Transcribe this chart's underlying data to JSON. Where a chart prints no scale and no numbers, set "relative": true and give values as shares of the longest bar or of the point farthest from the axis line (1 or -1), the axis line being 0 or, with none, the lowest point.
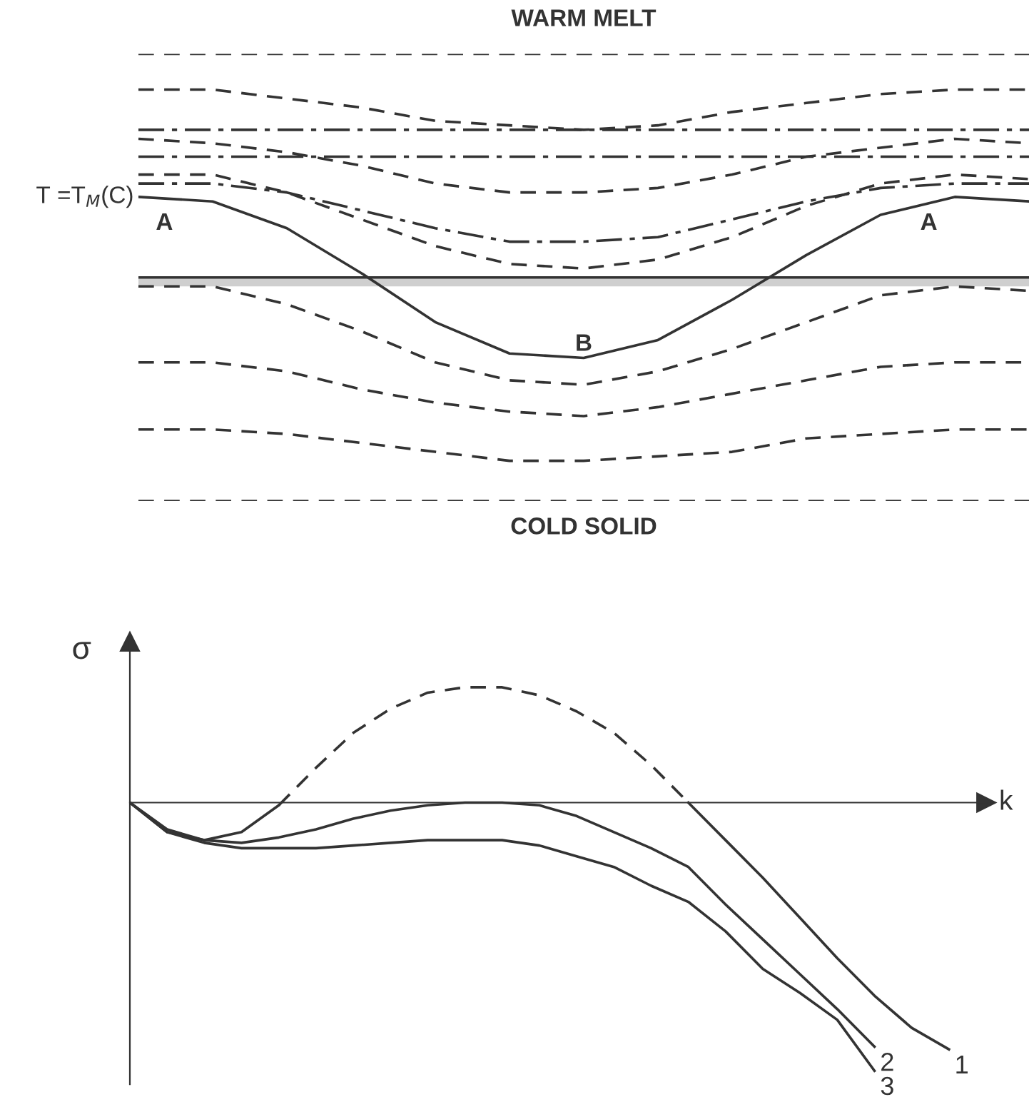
{
  "chart_data": [
    {
      "type": "line",
      "relative": true,
      "title": "WARM MELT",
      "xlabel": "COLD SOLID",
      "ylabel": "T =T$_{M}$(C)",
      "categories": [
        null,
        null,
        null,
        null,
        null,
        null,
        null,
        null,
        null,
        null,
        null,
        null,
        null
      ],
      "series": [
        {
          "color": "#333333",
          "line_style": "dashed",
          "values": [
            1,
            1,
            1,
            1,
            1,
            1,
            1,
            1,
            1,
            1,
            1,
            1,
            1
          ]
        },
        {
          "color": "#333333",
          "line_style": "dashed",
          "values": [
            0.92,
            0.92,
            0.9,
            0.88,
            0.85,
            0.84,
            0.83,
            0.84,
            0.87,
            0.89,
            0.91,
            0.92,
            0.92
          ]
        },
        {
          "color": "#333333",
          "line_style": "dashdot",
          "values": [
            0.83,
            0.83,
            0.83,
            0.83,
            0.83,
            0.83,
            0.83,
            0.83,
            0.83,
            0.83,
            0.83,
            0.83,
            0.83
          ]
        },
        {
          "color": "#333333",
          "line_style": "dashed",
          "values": [
            0.81,
            0.8,
            0.78,
            0.75,
            0.71,
            0.69,
            0.69,
            0.7,
            0.73,
            0.77,
            0.79,
            0.81,
            0.8
          ]
        },
        {
          "color": "#333333",
          "line_style": "dashdot",
          "values": [
            0.77,
            0.77,
            0.77,
            0.77,
            0.77,
            0.77,
            0.77,
            0.77,
            0.77,
            0.77,
            0.77,
            0.77,
            0.77
          ]
        },
        {
          "color": "#333333",
          "line_style": "dashed",
          "values": [
            0.73,
            0.73,
            0.69,
            0.63,
            0.57,
            0.53,
            0.52,
            0.54,
            0.59,
            0.66,
            0.71,
            0.73,
            0.72
          ]
        },
        {
          "color": "#333333",
          "line_style": "dashdot",
          "values": [
            0.71,
            0.71,
            0.69,
            0.65,
            0.61,
            0.58,
            0.58,
            0.59,
            0.63,
            0.67,
            0.7,
            0.71,
            0.71
          ]
        },
        {
          "color": "#333333",
          "line_style": "solid",
          "values": [
            0.68,
            0.67,
            0.61,
            0.51,
            0.4,
            0.33,
            0.32,
            0.36,
            0.45,
            0.55,
            0.64,
            0.68,
            0.67
          ]
        },
        {
          "color": "#333333",
          "line_style": "solid",
          "values": [
            0.5,
            0.5,
            0.5,
            0.5,
            0.5,
            0.5,
            0.5,
            0.5,
            0.5,
            0.5,
            0.5,
            0.5,
            0.5
          ]
        },
        {
          "color": "#333333",
          "line_style": "dashed",
          "values": [
            0.48,
            0.48,
            0.44,
            0.38,
            0.31,
            0.27,
            0.26,
            0.29,
            0.34,
            0.4,
            0.46,
            0.48,
            0.47
          ]
        },
        {
          "color": "#333333",
          "line_style": "dashed",
          "values": [
            0.31,
            0.31,
            0.29,
            0.25,
            0.22,
            0.2,
            0.19,
            0.21,
            0.24,
            0.27,
            0.3,
            0.31,
            0.31
          ]
        },
        {
          "color": "#333333",
          "line_style": "dashed",
          "values": [
            0.16,
            0.16,
            0.15,
            0.13,
            0.11,
            0.09,
            0.09,
            0.1,
            0.11,
            0.14,
            0.15,
            0.16,
            0.16
          ]
        },
        {
          "color": "#333333",
          "line_style": "dashed",
          "values": [
            0,
            0,
            0,
            0,
            0,
            0,
            0,
            0,
            0,
            0,
            0,
            0,
            0
          ]
        }
      ],
      "bands": [
        {
          "axis": "y",
          "from": 0.48,
          "to": 0.5,
          "color": "#cfcfcf"
        }
      ],
      "annotations": [
        "A",
        "B",
        "A"
      ]
    },
    {
      "type": "line",
      "relative": true,
      "xlabel": "k",
      "ylabel": "σ",
      "categories": [
        null,
        null,
        null,
        null,
        null,
        null,
        null,
        null,
        null,
        null,
        null,
        null,
        null,
        null,
        null,
        null,
        null,
        null,
        null,
        null,
        null,
        null,
        null
      ],
      "series": [
        {
          "name": "1",
          "color": "#333333",
          "line_style": "solid",
          "values": [
            0,
            -0.11,
            -0.14,
            -0.11,
            -0.01,
            null,
            null,
            null,
            null,
            null,
            null,
            null,
            null,
            null,
            null,
            0.0,
            -0.14,
            -0.28,
            -0.43,
            -0.58,
            -0.72,
            -0.84,
            -0.92
          ]
        },
        {
          "color": "#333333",
          "line_style": "dashed",
          "values": [
            null,
            null,
            null,
            null,
            -0.01,
            0.13,
            0.26,
            0.35,
            0.41,
            0.43,
            0.43,
            0.4,
            0.34,
            0.26,
            0.14,
            0.0,
            null,
            null,
            null,
            null,
            null,
            null,
            null
          ]
        },
        {
          "name": "2",
          "color": "#333333",
          "line_style": "solid",
          "values": [
            0,
            -0.1,
            -0.14,
            -0.15,
            -0.13,
            -0.1,
            -0.06,
            -0.03,
            -0.01,
            0.0,
            0.0,
            -0.01,
            -0.05,
            -0.11,
            -0.17,
            -0.24,
            -0.38,
            -0.51,
            -0.64,
            -0.77,
            -0.91,
            null,
            null
          ]
        },
        {
          "name": "3",
          "color": "#333333",
          "line_style": "solid",
          "values": [
            0,
            -0.11,
            -0.15,
            -0.17,
            -0.17,
            -0.17,
            -0.16,
            -0.15,
            -0.14,
            -0.14,
            -0.14,
            -0.16,
            -0.2,
            -0.24,
            -0.31,
            -0.37,
            -0.48,
            -0.62,
            -0.71,
            -0.81,
            -1.0,
            null,
            null
          ]
        }
      ]
    }
  ]
}
